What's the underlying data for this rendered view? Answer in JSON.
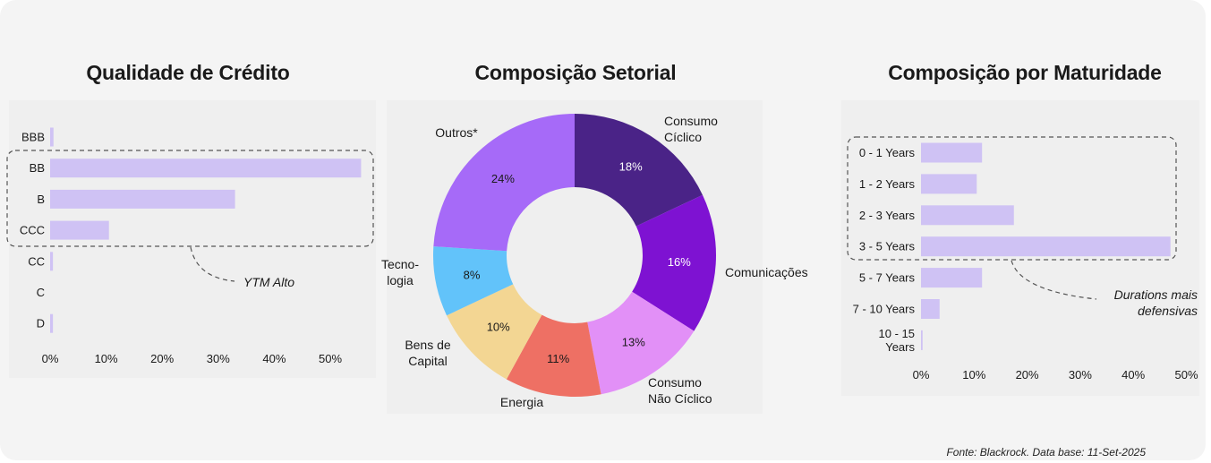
{
  "footer": "Fonte: Blackrock. Data base: 11-Set-2025",
  "colors": {
    "bar": "#cfc2f4",
    "dashed": "#555555",
    "pie": [
      "#4a2387",
      "#7e12d2",
      "#e290f7",
      "#ee7064",
      "#f3d693",
      "#62c3fa",
      "#a66af8"
    ]
  },
  "chart_data": [
    {
      "type": "bar",
      "orientation": "horizontal",
      "title": "Qualidade de Crédito",
      "categories": [
        "BBB",
        "BB",
        "B",
        "CCC",
        "CC",
        "C",
        "D"
      ],
      "values": [
        0.6,
        55.5,
        33,
        10.5,
        0.5,
        0,
        0.5
      ],
      "xlim": [
        0,
        55
      ],
      "xticks": [
        "0%",
        "10%",
        "20%",
        "30%",
        "40%",
        "50%"
      ],
      "annotation": "YTM Alto",
      "highlight": [
        "BB",
        "B",
        "CCC"
      ]
    },
    {
      "type": "pie",
      "style": "donut",
      "title": "Composição Setorial",
      "labels": [
        "Consumo Cíclico",
        "Comunicações",
        "Consumo Não Cíclico",
        "Energia",
        "Bens de Capital",
        "Tecnologia",
        "Outros*"
      ],
      "label_lines": [
        [
          "Consumo",
          "Cíclico"
        ],
        [
          "Comunicações"
        ],
        [
          "Consumo",
          "Não Cíclico"
        ],
        [
          "Energia"
        ],
        [
          "Bens de",
          "Capital"
        ],
        [
          "Tecno-",
          "logia"
        ],
        [
          "Outros*"
        ]
      ],
      "values": [
        18,
        16,
        13,
        11,
        10,
        8,
        24
      ],
      "value_labels": [
        "18%",
        "16%",
        "13%",
        "11%",
        "10%",
        "8%",
        "24%"
      ]
    },
    {
      "type": "bar",
      "orientation": "horizontal",
      "title": "Composição por Maturidade",
      "categories": [
        "0 - 1 Years",
        "1 - 2 Years",
        "2 - 3 Years",
        "3 - 5 Years",
        "5 - 7 Years",
        "7 - 10 Years",
        "10 - 15 Years"
      ],
      "category_lines": [
        [
          "0 - 1 Years"
        ],
        [
          "1 - 2 Years"
        ],
        [
          "2 - 3 Years"
        ],
        [
          "3 - 5 Years"
        ],
        [
          "5 - 7 Years"
        ],
        [
          "7 - 10 Years"
        ],
        [
          "10 - 15",
          "Years"
        ]
      ],
      "values": [
        11.5,
        10.5,
        17.5,
        47,
        11.5,
        3.5,
        0.3
      ],
      "xlim": [
        0,
        50
      ],
      "xticks": [
        "0%",
        "10%",
        "20%",
        "30%",
        "40%",
        "50%"
      ],
      "annotation_lines": [
        "Durations mais",
        "defensivas"
      ],
      "highlight": [
        "0 - 1 Years",
        "1 - 2 Years",
        "2 - 3 Years",
        "3 - 5 Years"
      ]
    }
  ]
}
